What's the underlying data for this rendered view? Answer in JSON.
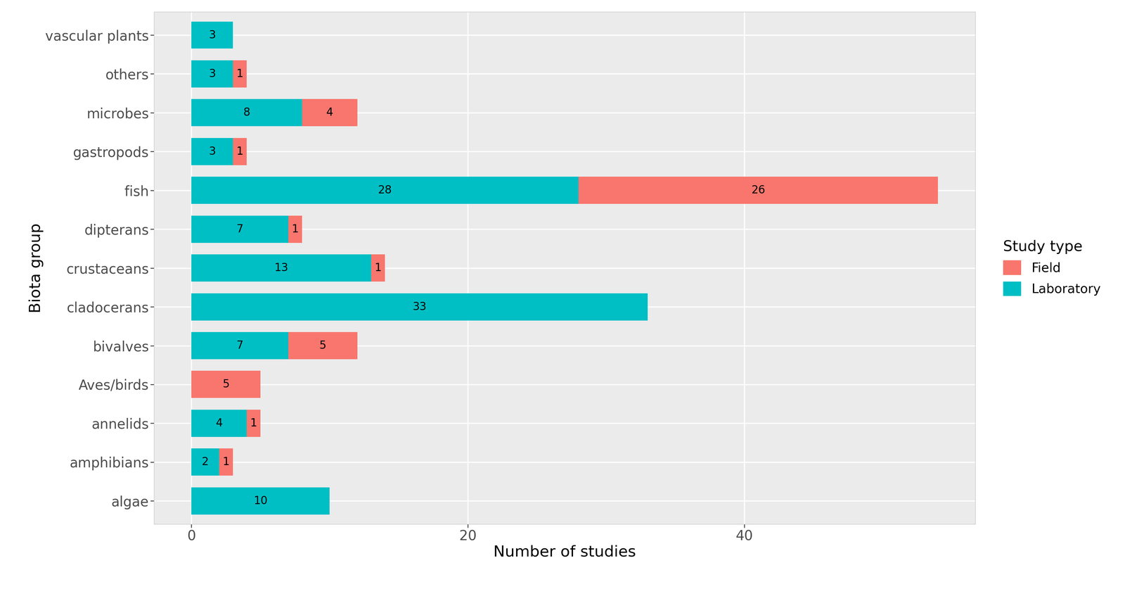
{
  "chart_data": {
    "type": "bar",
    "orientation": "horizontal",
    "stacked": true,
    "categories": [
      "algae",
      "amphibians",
      "annelids",
      "Aves/birds",
      "bivalves",
      "cladocerans",
      "crustaceans",
      "dipterans",
      "fish",
      "gastropods",
      "microbes",
      "others",
      "vascular plants"
    ],
    "series": [
      {
        "name": "Laboratory",
        "color": "#00BFC4",
        "values": [
          10,
          2,
          4,
          null,
          7,
          33,
          13,
          7,
          28,
          3,
          8,
          3,
          3
        ]
      },
      {
        "name": "Field",
        "color": "#F8766D",
        "values": [
          null,
          1,
          1,
          5,
          5,
          null,
          1,
          1,
          26,
          1,
          4,
          1,
          null
        ]
      }
    ],
    "x_label": "Number of studies",
    "y_label": "Biota group",
    "legend_title": "Study type",
    "xlim": [
      -2.7,
      56.7
    ],
    "xticks": [
      0,
      20,
      40
    ],
    "grid": true,
    "legend": "center left",
    "data_labels": true
  }
}
